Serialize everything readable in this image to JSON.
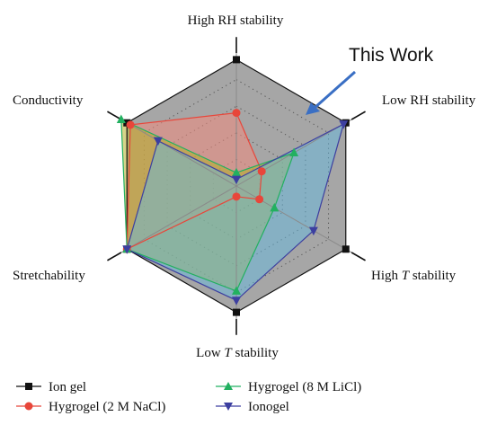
{
  "chart_data": {
    "type": "radar",
    "axes": [
      {
        "pre": "High RH stability",
        "italic": "",
        "post": ""
      },
      {
        "pre": "Low RH stability",
        "italic": "",
        "post": ""
      },
      {
        "pre": "High ",
        "italic": "T",
        "post": " stability"
      },
      {
        "pre": "Low ",
        "italic": "T",
        "post": " stability"
      },
      {
        "pre": "Stretchability",
        "italic": "",
        "post": ""
      },
      {
        "pre": "Conductivity",
        "italic": "",
        "post": ""
      }
    ],
    "rmax": 1.0,
    "grid_levels": [
      0.2,
      0.4,
      0.6,
      0.8
    ],
    "annotation": "This Work",
    "series": [
      {
        "name": "Ion gel",
        "color": "#111111",
        "fill": "#5c5c5c",
        "fill_opacity": 0.55,
        "marker": "square",
        "values": [
          0.95,
          0.95,
          0.95,
          0.95,
          0.95,
          0.95
        ]
      },
      {
        "name": "Hygrogel (2 M NaCl)",
        "color": "#e8463a",
        "fill": "#f08a7e",
        "fill_opacity": 0.55,
        "marker": "circle",
        "values": [
          0.55,
          0.22,
          0.2,
          0.08,
          0.95,
          0.92
        ]
      },
      {
        "name": "Hygrogel (8 M LiCl)",
        "color": "#22b060",
        "fill": "#b5b02a",
        "fill_opacity": 0.55,
        "marker": "triangle-up",
        "values": [
          0.1,
          0.5,
          0.33,
          0.79,
          0.95,
          1.0
        ]
      },
      {
        "name": "Ionogel",
        "color": "#3c3fa0",
        "fill": "#66b9df",
        "fill_opacity": 0.5,
        "marker": "triangle-down",
        "values": [
          0.05,
          0.93,
          0.67,
          0.86,
          0.95,
          0.68
        ]
      }
    ]
  }
}
